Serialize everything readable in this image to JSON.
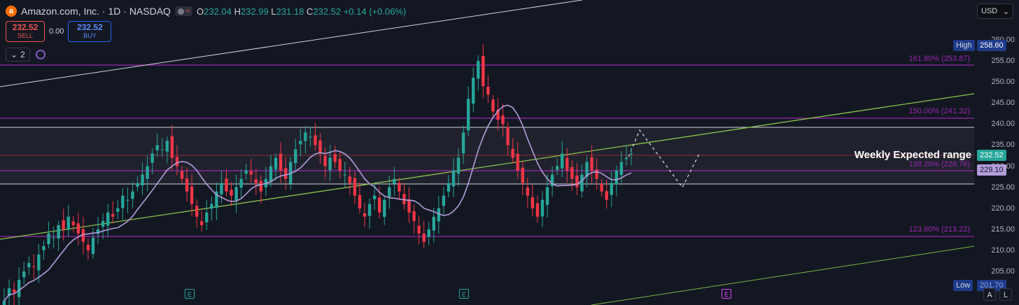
{
  "header": {
    "symbol_title": "Amazon.com, Inc. · 1D · NASDAQ",
    "logo_letter": "a",
    "ohlc": {
      "o_label": "O",
      "o": "232.04",
      "h_label": "H",
      "h": "232.99",
      "l_label": "L",
      "l": "231.18",
      "c_label": "C",
      "c": "232.52",
      "change": "+0.14 (+0.06%)"
    }
  },
  "trade": {
    "sell_price": "232.52",
    "sell_label": "SELL",
    "spread": "0.00",
    "buy_price": "232.52",
    "buy_label": "BUY"
  },
  "collapse": {
    "count": "2"
  },
  "currency": "USD",
  "price_axis": {
    "ticks": [
      "260.00",
      "255.00",
      "250.00",
      "245.00",
      "240.00",
      "235.00",
      "230.00",
      "225.00",
      "220.00",
      "215.00",
      "210.00",
      "205.00"
    ],
    "high_label": "High",
    "high_value": "258.60",
    "low_label": "Low",
    "low_value": "201.70",
    "current_price": "232.52",
    "ma_value": "229.10"
  },
  "fib_levels": [
    {
      "label": "161.80% (253.87)"
    },
    {
      "label": "150.00% (241.32)"
    },
    {
      "label": "138.20% (228.76)"
    },
    {
      "label": "123.60% (213.22)"
    }
  ],
  "annotation": "Weekly Expected range",
  "earnings_markers": [
    {
      "letter": "E",
      "state": "past"
    },
    {
      "letter": "E",
      "state": "past"
    },
    {
      "letter": "E",
      "state": "future"
    }
  ],
  "scale_buttons": [
    "A",
    "L"
  ],
  "colors": {
    "background": "#131722",
    "up": "#26a69a",
    "down": "#f23645",
    "fib": "#9c27b0",
    "ma": "#b39ddb",
    "trendline": "#8bc34a",
    "current_price": "#f23645"
  }
}
